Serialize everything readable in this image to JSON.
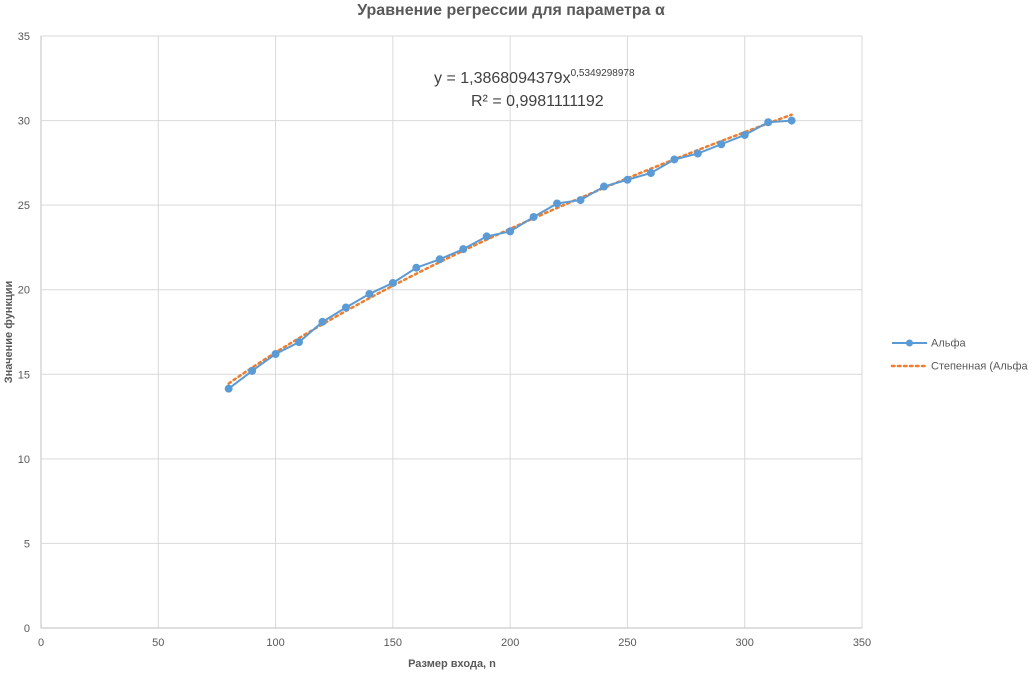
{
  "chart_data": {
    "type": "scatter",
    "title": "Уравнение регрессии для параметра α",
    "xlabel": "Размер входа, n",
    "ylabel": "Значение функции",
    "xlim": [
      0,
      350
    ],
    "ylim": [
      0,
      35
    ],
    "x_ticks": [
      "0",
      "50",
      "100",
      "150",
      "200",
      "250",
      "300",
      "350"
    ],
    "y_ticks": [
      "0",
      "5",
      "10",
      "15",
      "20",
      "25",
      "30",
      "35"
    ],
    "grid": true,
    "legend_position": "right",
    "series": [
      {
        "name": "Альфа",
        "color": "#5B9BD5",
        "style": "line-with-markers",
        "x": [
          80,
          90,
          100,
          110,
          120,
          130,
          140,
          150,
          160,
          170,
          180,
          190,
          200,
          210,
          220,
          230,
          240,
          250,
          260,
          270,
          280,
          290,
          300,
          310,
          320
        ],
        "y": [
          14.15,
          15.2,
          16.2,
          16.9,
          18.1,
          18.95,
          19.75,
          20.4,
          21.3,
          21.8,
          22.4,
          23.15,
          23.45,
          24.3,
          25.1,
          25.3,
          26.1,
          26.5,
          26.9,
          27.7,
          28.05,
          28.6,
          29.15,
          29.9,
          30.0
        ]
      },
      {
        "name": "Степенная (Альфа)",
        "color": "#ED7D31",
        "style": "dotted-trendline",
        "trend": {
          "type": "power",
          "a": 1.3868094379,
          "b": 0.5349298978,
          "x_from": 80,
          "x_to": 320
        }
      }
    ],
    "annotations": {
      "equation_base": "y = 1,3868094379x",
      "equation_exponent": "0,5349298978",
      "r_squared": "R² = 0,9981111192"
    }
  }
}
